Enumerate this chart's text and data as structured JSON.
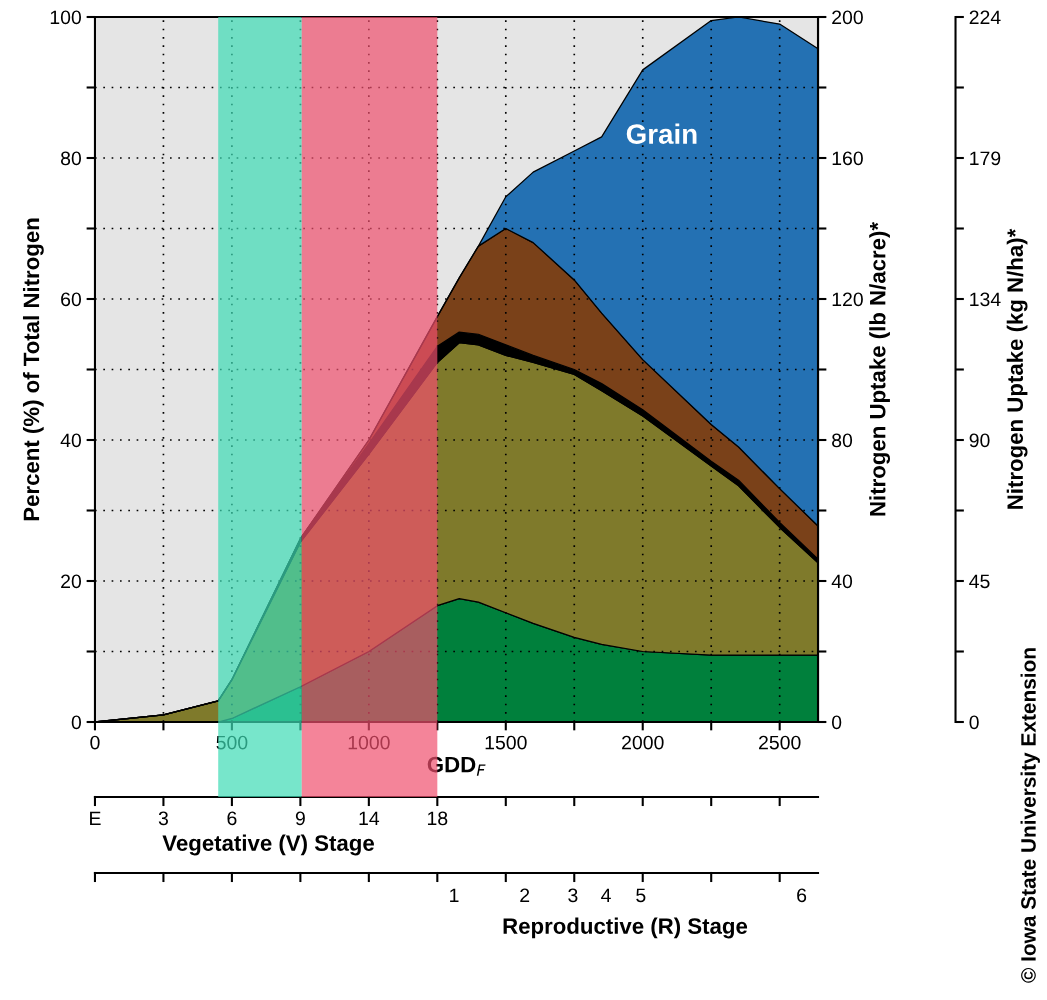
{
  "chart_data": {
    "type": "area",
    "stacked": true,
    "grid": true,
    "xlabel": "GDD$_{F}$",
    "ylabel": "Percent (%) of Total Nitrogen",
    "y2label": "Nitrogen Uptake (lb N/acre)*",
    "y3label": "Nitrogen Uptake (kg N/ha)*",
    "annotations": [
      "E",
      "3",
      "6",
      "9",
      "14",
      "18",
      "Vegetative (V) Stage",
      "1",
      "2",
      "3",
      "4",
      "5",
      "6",
      "Reproductive (R) Stage",
      "© Iowa State University Extension"
    ],
    "x": [
      0,
      250,
      450,
      500,
      750,
      1000,
      1250,
      1330,
      1400,
      1500,
      1600,
      1750,
      1850,
      2000,
      2250,
      2350,
      2500,
      2640
    ],
    "series": [
      {
        "color": "#00803c",
        "values": [
          0,
          0,
          0,
          0.5,
          5,
          10,
          16.5,
          17.5,
          17,
          15.5,
          14,
          12,
          11,
          10,
          9.5,
          9.5,
          9.5,
          9.5
        ]
      },
      {
        "color": "#7f7a2b",
        "values": [
          0,
          1,
          3,
          5.5,
          20.5,
          28,
          34.5,
          36.3,
          36.5,
          36.5,
          37,
          37.3,
          36,
          33.4,
          26.8,
          24,
          18.1,
          13.1
        ]
      },
      {
        "color": "#000000",
        "values": [
          0,
          0,
          0,
          0,
          0.5,
          1.5,
          2.3,
          1.5,
          1.5,
          1.5,
          1,
          0.7,
          1,
          0.9,
          0.7,
          0.8,
          0.7,
          0.5
        ]
      },
      {
        "color": "#7a4119",
        "values": [
          0,
          0,
          0,
          0,
          0,
          0.5,
          4.2,
          7.7,
          12.5,
          16.5,
          16,
          12.7,
          10,
          7.1,
          5.2,
          4.7,
          4.8,
          4.7
        ]
      },
      {
        "name": "Grain",
        "color": "#2471b3",
        "values": [
          0,
          0,
          0,
          0,
          0,
          0,
          0,
          0,
          0,
          4.5,
          10,
          18.3,
          25,
          41.1,
          57.3,
          61,
          65.9,
          67.7
        ]
      }
    ],
    "bands": [
      {
        "axis": "x",
        "from": 450,
        "to": 755,
        "color": "#3ddbb5"
      },
      {
        "axis": "x",
        "from": 755,
        "to": 1250,
        "color": "#f0506e"
      }
    ],
    "xlim": [
      0,
      2640
    ],
    "xticks": [
      0,
      {
        "value": 250,
        "label": null
      },
      500,
      {
        "value": 750,
        "label": null
      },
      1000,
      {
        "value": 1250,
        "label": null
      },
      1500,
      {
        "value": 1750,
        "label": null
      },
      2000,
      {
        "value": 2250,
        "label": null
      },
      2500
    ],
    "ylim": [
      0,
      100
    ],
    "yticks": [
      0,
      {
        "value": 10,
        "label": null
      },
      20,
      {
        "value": 30,
        "label": null
      },
      40,
      {
        "value": 50,
        "label": null
      },
      60,
      {
        "value": 70,
        "label": null
      },
      80,
      {
        "value": 90,
        "label": null
      },
      100
    ],
    "y2lim": [
      0,
      200
    ],
    "y2ticks": [
      0,
      {
        "value": 20,
        "label": null
      },
      40,
      {
        "value": 60,
        "label": null
      },
      80,
      {
        "value": 100,
        "label": null
      },
      120,
      {
        "value": 140,
        "label": null
      },
      160,
      {
        "value": 180,
        "label": null
      },
      200
    ],
    "y3lim": [
      0,
      224
    ],
    "y3ticks": [
      0,
      {
        "value": 22.4,
        "label": null
      },
      {
        "value": 44.8,
        "label": "45"
      },
      {
        "value": 67.2,
        "label": null
      },
      {
        "value": 89.6,
        "label": "90"
      },
      {
        "value": 112,
        "label": null
      },
      {
        "value": 134.4,
        "label": "134"
      },
      {
        "value": 156.8,
        "label": null
      },
      {
        "value": 179.2,
        "label": "179"
      },
      {
        "value": 201.6,
        "label": null
      },
      224
    ]
  }
}
